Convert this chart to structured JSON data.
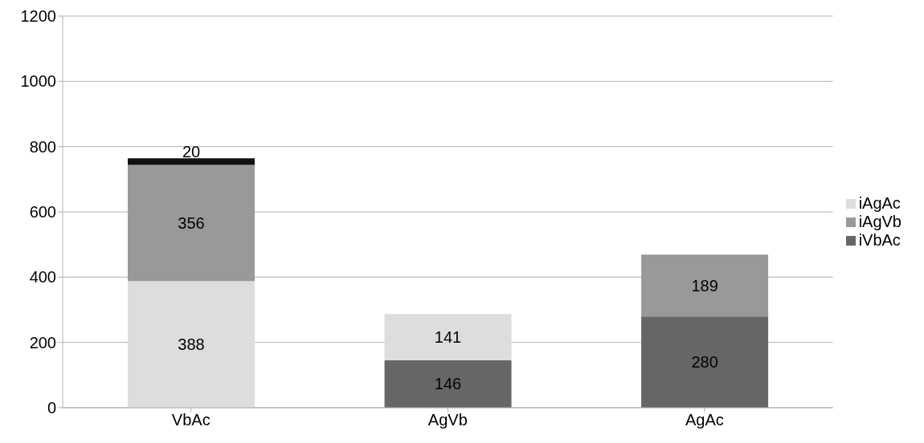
{
  "chart_data": {
    "type": "bar",
    "stacked": true,
    "categories": [
      "VbAc",
      "AgVb",
      "AgAc"
    ],
    "series": [
      {
        "name": "iVbAc",
        "color": "#666666",
        "values": [
          null,
          146,
          280
        ]
      },
      {
        "name": "iAgAc",
        "color": "#dddddd",
        "values": [
          388,
          141,
          null
        ]
      },
      {
        "name": "iAgVb",
        "color": "#999999",
        "values": [
          356,
          null,
          189
        ]
      },
      {
        "color": "#111111",
        "values": [
          20,
          null,
          null
        ]
      }
    ],
    "ylim": [
      0,
      1200
    ],
    "yticks": [
      0,
      200,
      400,
      600,
      800,
      1000,
      1200
    ],
    "grid": "y",
    "legend": "right",
    "data_labels": true
  }
}
